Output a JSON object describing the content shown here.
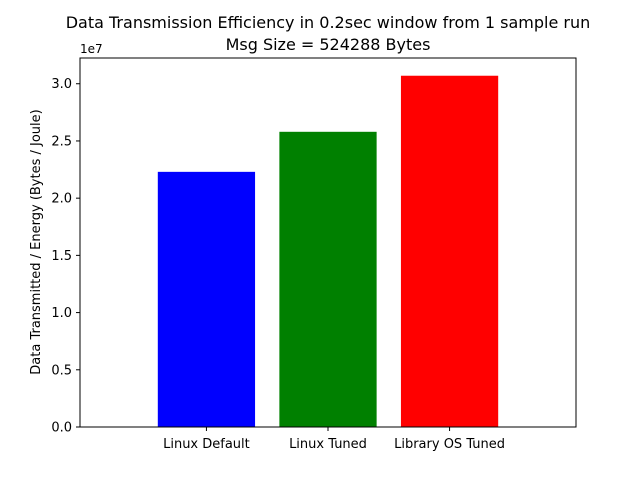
{
  "chart_data": {
    "type": "bar",
    "title_line1": "Data Transmission Efficiency in 0.2sec window from 1 sample run",
    "title_line2": "Msg Size = 524288 Bytes",
    "xlabel": "",
    "ylabel": "Data Transmitted / Energy (Bytes / Joule)",
    "y_offset_label": "1e7",
    "categories": [
      "Linux Default",
      "Linux Tuned",
      "Library OS Tuned"
    ],
    "values": [
      22300000,
      25800000,
      30700000
    ],
    "colors": [
      "#0000ff",
      "#008000",
      "#ff0000"
    ],
    "ylim": [
      0,
      32250000
    ],
    "y_ticks": [
      0,
      5000000,
      10000000,
      15000000,
      20000000,
      25000000,
      30000000
    ],
    "y_tick_labels": [
      "0.0",
      "0.5",
      "1.0",
      "1.5",
      "2.0",
      "2.5",
      "3.0"
    ],
    "grid": false,
    "legend": "none"
  }
}
